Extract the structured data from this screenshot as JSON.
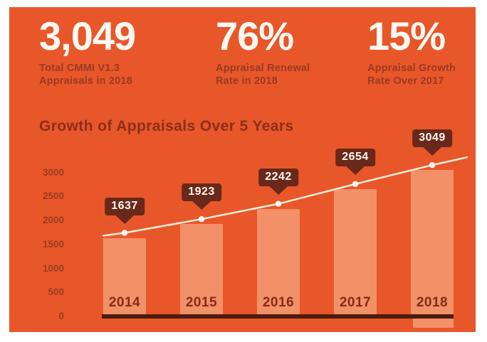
{
  "stats": [
    {
      "value": "3,049",
      "label_line1": "Total CMMI V1.3",
      "label_line2": "Appraisals in 2018"
    },
    {
      "value": "76%",
      "label_line1": "Appraisal Renewal",
      "label_line2": "Rate in 2018"
    },
    {
      "value": "15%",
      "label_line1": "Appraisal Growth",
      "label_line2": "Rate Over 2017"
    }
  ],
  "chart_data": {
    "type": "bar",
    "overlay_line_with_markers": true,
    "title": "Growth of Appraisals Over 5 Years",
    "categories": [
      "2014",
      "2015",
      "2016",
      "2017",
      "2018"
    ],
    "values": [
      1637,
      1923,
      2242,
      2654,
      3049
    ],
    "y_ticks": [
      3000,
      2500,
      2000,
      1500,
      1000,
      500,
      0
    ],
    "ylim": [
      0,
      3300
    ],
    "xlabel": "",
    "ylabel": "",
    "grid": "off",
    "legend": "none"
  },
  "colors": {
    "background_orange": "#E8572A",
    "frame_white": "#FFFFFF",
    "bar_salmon": "#F29068",
    "dark_maroon_text": "#9A3A22",
    "title_maroon": "#8C2E1A",
    "callout_bg": "#69281A",
    "baseline_dark": "#4B1D0F",
    "trend_line_cream": "#F8EDDA",
    "marker_white": "#FFFDF8",
    "stat_value_white": "#FDF8F2"
  }
}
